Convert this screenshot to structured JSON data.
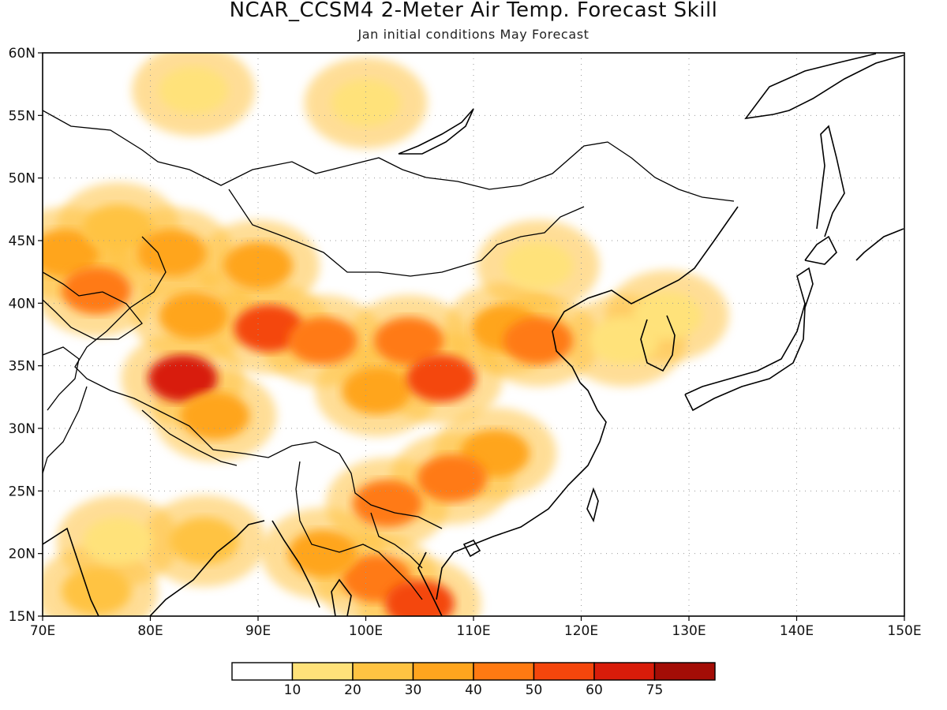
{
  "title": "NCAR_CCSM4 2-Meter Air Temp. Forecast Skill",
  "subtitle": "Jan initial conditions  May Forecast",
  "map": {
    "lon_range": [
      70,
      150
    ],
    "lat_range": [
      15,
      60
    ],
    "x_ticks": [
      "70E",
      "80E",
      "90E",
      "100E",
      "110E",
      "120E",
      "130E",
      "140E",
      "150E"
    ],
    "y_ticks": [
      "15N",
      "20N",
      "25N",
      "30N",
      "35N",
      "40N",
      "45N",
      "50N",
      "55N",
      "60N"
    ],
    "grid": "dotted"
  },
  "colorbar": {
    "colors": [
      "#ffffff",
      "#ffe27a",
      "#ffc342",
      "#ffa51e",
      "#ff7a12",
      "#f4460c",
      "#d81c0a",
      "#a30d06"
    ],
    "labels": [
      "10",
      "20",
      "30",
      "40",
      "50",
      "60",
      "75"
    ]
  },
  "chart_data": {
    "type": "heatmap",
    "title": "NCAR_CCSM4 2-Meter Air Temp. Forecast Skill",
    "subtitle": "Jan initial conditions  May Forecast",
    "xlim": [
      70,
      150
    ],
    "ylim": [
      15,
      60
    ],
    "levels": [
      10,
      20,
      30,
      40,
      50,
      60,
      75
    ],
    "regions": [
      {
        "lon": 72,
        "lat": 44,
        "value": 35
      },
      {
        "lon": 75,
        "lat": 41,
        "value": 45
      },
      {
        "lon": 77,
        "lat": 46,
        "value": 25
      },
      {
        "lon": 82,
        "lat": 44,
        "value": 30
      },
      {
        "lon": 84,
        "lat": 39,
        "value": 35
      },
      {
        "lon": 83,
        "lat": 34,
        "value": 65
      },
      {
        "lon": 86,
        "lat": 31,
        "value": 35
      },
      {
        "lon": 91,
        "lat": 38,
        "value": 50
      },
      {
        "lon": 90,
        "lat": 43,
        "value": 35
      },
      {
        "lon": 96,
        "lat": 37,
        "value": 45
      },
      {
        "lon": 101,
        "lat": 33,
        "value": 35
      },
      {
        "lon": 104,
        "lat": 37,
        "value": 45
      },
      {
        "lon": 107,
        "lat": 34,
        "value": 50
      },
      {
        "lon": 113,
        "lat": 38,
        "value": 35
      },
      {
        "lon": 116,
        "lat": 37,
        "value": 45
      },
      {
        "lon": 112,
        "lat": 28,
        "value": 35
      },
      {
        "lon": 108,
        "lat": 26,
        "value": 45
      },
      {
        "lon": 102,
        "lat": 24,
        "value": 45
      },
      {
        "lon": 101,
        "lat": 18,
        "value": 45
      },
      {
        "lon": 105,
        "lat": 16,
        "value": 50
      },
      {
        "lon": 96,
        "lat": 20,
        "value": 35
      },
      {
        "lon": 75,
        "lat": 17,
        "value": 25
      },
      {
        "lon": 77,
        "lat": 21,
        "value": 15
      },
      {
        "lon": 85,
        "lat": 21,
        "value": 25
      },
      {
        "lon": 116,
        "lat": 43,
        "value": 15
      },
      {
        "lon": 84,
        "lat": 57,
        "value": 15
      },
      {
        "lon": 100,
        "lat": 56,
        "value": 15
      },
      {
        "lon": 124,
        "lat": 37,
        "value": 15
      },
      {
        "lon": 128,
        "lat": 39,
        "value": 15
      }
    ]
  }
}
